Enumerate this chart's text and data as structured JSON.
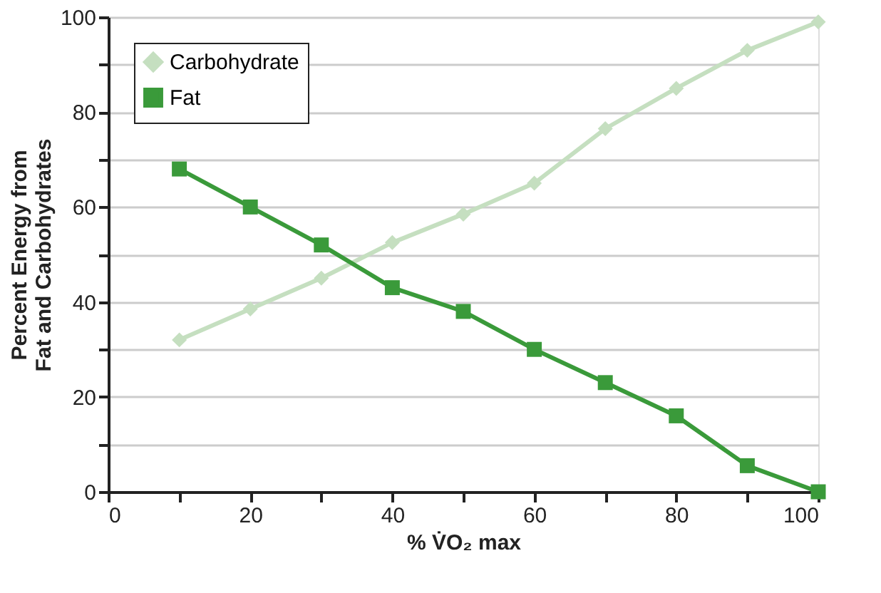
{
  "chart_data": {
    "type": "line",
    "xlabel": "% V̇O₂ max",
    "ylabel": "Percent Energy from\nFat and Carbohydrates",
    "x": [
      10,
      20,
      30,
      40,
      50,
      60,
      70,
      80,
      90,
      100
    ],
    "series": [
      {
        "name": "Carbohydrate",
        "color": "#c5dfc0",
        "marker": "diamond",
        "values": [
          32,
          38.5,
          45,
          52.5,
          58.5,
          65,
          76.5,
          85,
          93,
          99
        ]
      },
      {
        "name": "Fat",
        "color": "#3a9a3a",
        "marker": "square",
        "values": [
          68,
          60,
          52,
          43,
          38,
          30,
          23,
          16,
          5.5,
          0
        ]
      }
    ],
    "xlim": [
      0,
      100
    ],
    "ylim": [
      0,
      100
    ],
    "xticks": [
      0,
      {
        "value": 10,
        "label": null
      },
      20,
      {
        "value": 30,
        "label": null
      },
      40,
      {
        "value": 50,
        "label": null
      },
      60,
      {
        "value": 70,
        "label": null
      },
      80,
      {
        "value": 90,
        "label": null
      },
      100
    ],
    "yticks": [
      0,
      {
        "value": 10,
        "label": null
      },
      20,
      {
        "value": 30,
        "label": null
      },
      40,
      {
        "value": 50,
        "label": null
      },
      60,
      {
        "value": 70,
        "label": null
      },
      80,
      {
        "value": 90,
        "label": null
      },
      100
    ],
    "grid": "y",
    "legend": "top left",
    "line_style": "solid"
  }
}
